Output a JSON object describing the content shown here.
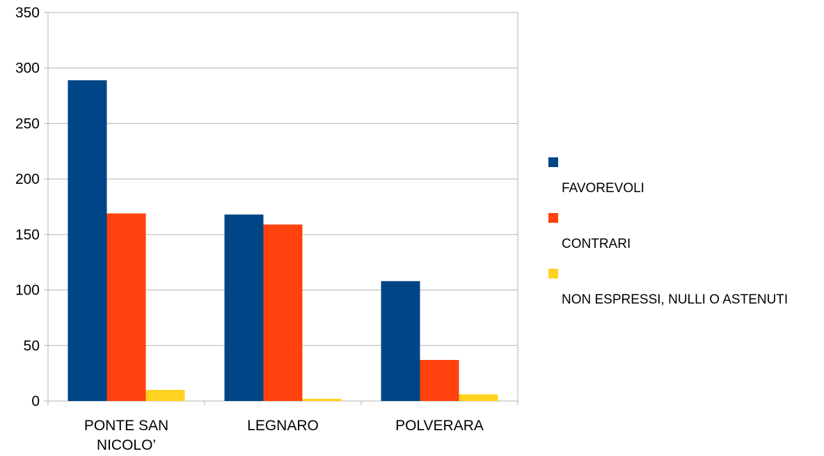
{
  "chart_data": {
    "type": "bar",
    "categories": [
      [
        "PONTE SAN",
        "NICOLO’"
      ],
      [
        "LEGNARO"
      ],
      [
        "POLVERARA"
      ]
    ],
    "series": [
      {
        "name": "FAVOREVOLI",
        "values": [
          289,
          168,
          108
        ],
        "color": "#004586"
      },
      {
        "name": "CONTRARI",
        "values": [
          169,
          159,
          37
        ],
        "color": "#ff420e"
      },
      {
        "name": "NON ESPRESSI, NULLI O ASTENUTI",
        "values": [
          10,
          2,
          6
        ],
        "color": "#ffd320"
      }
    ],
    "ylim": [
      0,
      350
    ],
    "yticks": [
      0,
      50,
      100,
      150,
      200,
      250,
      300,
      350
    ],
    "grid": true,
    "legend_position": "right"
  }
}
